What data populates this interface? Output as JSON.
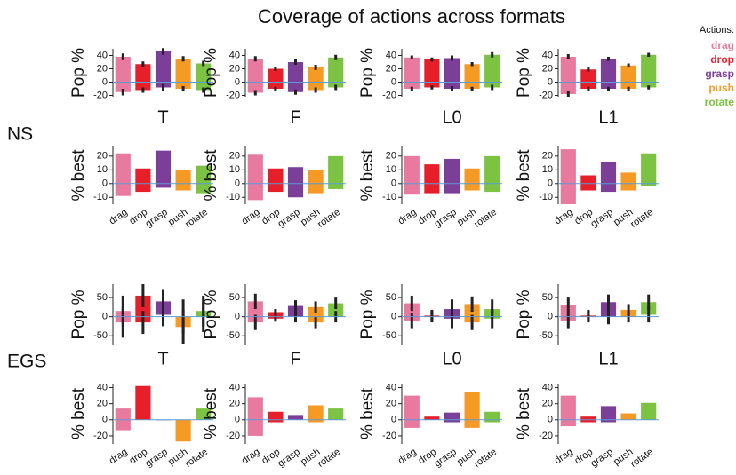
{
  "chart_data": {
    "type": "floating-bar",
    "title": "Coverage of actions across formats",
    "legend_title": "Actions:",
    "categories": [
      "drag",
      "drop",
      "grasp",
      "push",
      "rotate"
    ],
    "colors": [
      "#e8799f",
      "#e61f2b",
      "#7b3f99",
      "#f59a25",
      "#7cc243"
    ],
    "groups": [
      {
        "label": "NS",
        "formats": [
          "T",
          "F",
          "L0",
          "L1"
        ],
        "pop": {
          "ylabel": "Pop %",
          "ylim": [
            -22,
            50
          ],
          "yticks": [
            -20,
            0,
            20,
            40
          ],
          "panels": [
            {
              "low": [
                -15,
                -12,
                -8,
                -10,
                -12
              ],
              "high": [
                38,
                27,
                46,
                35,
                28
              ],
              "err": [
                5,
                4,
                5,
                4,
                4
              ]
            },
            {
              "low": [
                -16,
                -10,
                -15,
                -12,
                -8
              ],
              "high": [
                35,
                20,
                30,
                22,
                37
              ],
              "err": [
                4,
                3,
                4,
                4,
                4
              ]
            },
            {
              "low": [
                -10,
                -8,
                -10,
                -10,
                -8
              ],
              "high": [
                37,
                34,
                36,
                27,
                41
              ],
              "err": [
                3,
                3,
                4,
                3,
                4
              ]
            },
            {
              "low": [
                -18,
                -10,
                -10,
                -10,
                -8
              ],
              "high": [
                38,
                19,
                35,
                25,
                41
              ],
              "err": [
                4,
                3,
                3,
                3,
                3
              ]
            }
          ]
        },
        "best": {
          "ylabel": "% best",
          "ylim": [
            -15,
            27
          ],
          "yticks": [
            -10,
            0,
            10,
            20
          ],
          "panels": [
            {
              "low": [
                -9,
                -6,
                -3,
                -5,
                -7
              ],
              "high": [
                22,
                11,
                24,
                10,
                13
              ]
            },
            {
              "low": [
                -12,
                -6,
                -10,
                -7,
                -4
              ],
              "high": [
                21,
                11,
                12,
                10,
                20
              ]
            },
            {
              "low": [
                -8,
                -7,
                -7,
                -5,
                -6
              ],
              "high": [
                20,
                14,
                18,
                11,
                20
              ]
            },
            {
              "low": [
                -15,
                -5,
                -6,
                -5,
                -2
              ],
              "high": [
                25,
                6,
                16,
                8,
                22
              ]
            }
          ]
        }
      },
      {
        "label": "EGS",
        "formats": [
          "T",
          "F",
          "L0",
          "L1"
        ],
        "pop": {
          "ylabel": "Pop %",
          "ylim": [
            -75,
            85
          ],
          "yticks": [
            -50,
            0,
            50
          ],
          "panels": [
            {
              "low": [
                -15,
                -15,
                5,
                -27,
                0
              ],
              "high": [
                15,
                55,
                40,
                0,
                15
              ],
              "err": [
                40,
                30,
                30,
                45,
                40
              ]
            },
            {
              "low": [
                -15,
                -5,
                0,
                -15,
                0
              ],
              "high": [
                40,
                12,
                28,
                25,
                35
              ],
              "err": [
                20,
                8,
                15,
                15,
                15
              ]
            },
            {
              "low": [
                -10,
                0,
                -5,
                -15,
                -5
              ],
              "high": [
                35,
                3,
                20,
                33,
                20
              ],
              "err": [
                20,
                15,
                25,
                20,
                25
              ]
            },
            {
              "low": [
                -10,
                0,
                0,
                0,
                5
              ],
              "high": [
                30,
                3,
                38,
                18,
                38
              ],
              "err": [
                20,
                15,
                20,
                15,
                20
              ]
            }
          ]
        },
        "best": {
          "ylabel": "% best",
          "ylim": [
            -30,
            45
          ],
          "yticks": [
            -20,
            0,
            20,
            40
          ],
          "panels": [
            {
              "low": [
                -13,
                0,
                0,
                -27,
                0
              ],
              "high": [
                14,
                42,
                0,
                0,
                14
              ]
            },
            {
              "low": [
                -20,
                -3,
                0,
                -3,
                0
              ],
              "high": [
                28,
                10,
                6,
                18,
                14
              ]
            },
            {
              "low": [
                -10,
                0,
                -3,
                -10,
                -3
              ],
              "high": [
                30,
                4,
                9,
                35,
                10
              ]
            },
            {
              "low": [
                -8,
                -3,
                -3,
                0,
                0
              ],
              "high": [
                30,
                4,
                17,
                8,
                21
              ]
            }
          ]
        }
      }
    ]
  }
}
